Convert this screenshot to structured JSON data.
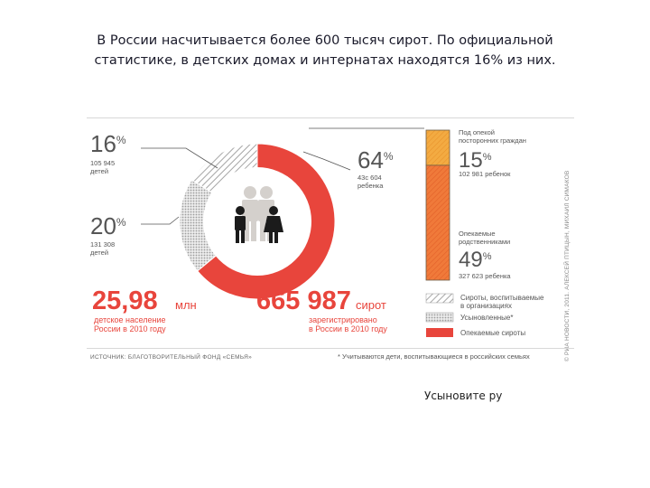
{
  "headline": {
    "line1": "В России насчитывается более 600 тысяч сирот. По официальной",
    "line2": "статистике, в детских домах и интернатах находятся 16% из них."
  },
  "chart_data": [
    {
      "type": "pie",
      "variant": "donut",
      "slices": [
        {
          "value_pct": 64,
          "count_label": "43c 604",
          "count_text": "ребенка",
          "color": "#e8453c",
          "pattern": "solid"
        },
        {
          "value_pct": 20,
          "count_label": "131 308",
          "count_text": "детей",
          "color": "#cfcfcf",
          "pattern": "dotted"
        },
        {
          "value_pct": 16,
          "count_label": "105 945",
          "count_text": "детей",
          "color": "#9a9a9a",
          "pattern": "hatched"
        }
      ],
      "legend": [
        {
          "label": "Сироты, воспитываемые в организациях",
          "line1": "Сироты, воспитываемые",
          "line2": "в организациях",
          "pattern": "hatched"
        },
        {
          "label": "Усыновленные*",
          "pattern": "dotted"
        },
        {
          "label": "Опекаемые сироты",
          "pattern": "solid",
          "color": "#e8453c"
        }
      ]
    },
    {
      "type": "bar",
      "variant": "stacked-vertical",
      "segments": [
        {
          "name": "Под опекой посторонних граждан",
          "line1": "Под опекой",
          "line2": "посторонних граждан",
          "value_pct": 15,
          "count_label": "102 981 ребенок",
          "color": "#f0a23a"
        },
        {
          "name": "Опекаемые родственниками",
          "line1": "Опекаемые",
          "line2": "родственниками",
          "value_pct": 49,
          "count_label": "327 623 ребенка",
          "color": "#f07a3a"
        }
      ]
    }
  ],
  "stats": {
    "population": {
      "number": "25,98",
      "unit": "млн",
      "line1": "детское население",
      "line2": "России в 2010 году"
    },
    "orphans": {
      "number": "665 987",
      "unit": "сирот",
      "line1": "зарегистрировано",
      "line2": "в России в 2010 году"
    }
  },
  "footnotes": {
    "source": "ИСТОЧНИК: БЛАГОТВОРИТЕЛЬНЫЙ ФОНД «СЕМЬЯ»",
    "note": "* Учитываются дети, воспитывающиеся в российских семьях",
    "credit": "© РИА НОВОСТИ, 2011. АЛЕКСЕЙ ПТИЦЫН, МИХАИЛ СИМАКОВ"
  },
  "footer_link": "Усыновите ру",
  "colors": {
    "accent_red": "#e8453c",
    "orange_light": "#f0a23a",
    "orange_dark": "#f07a3a",
    "hatch_gray": "#9a9a9a",
    "dotted_gray": "#cfcfcf"
  }
}
